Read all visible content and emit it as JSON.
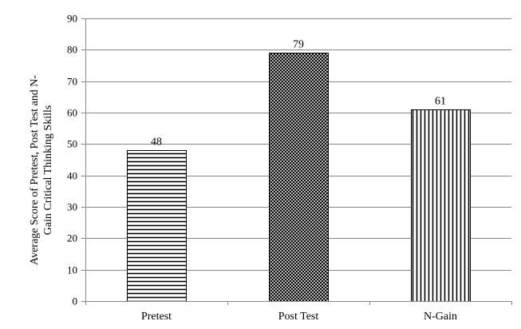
{
  "chart_data": {
    "type": "bar",
    "categories": [
      "Pretest",
      "Post Test",
      "N-Gain"
    ],
    "values": [
      48,
      79,
      61
    ],
    "data_labels": [
      "48",
      "79",
      "61"
    ],
    "bar_patterns": [
      "horizontal-lines",
      "diagonal-crosshatch",
      "vertical-lines"
    ],
    "title": "",
    "xlabel": "",
    "ylabel_lines": [
      "Average Score of Pretest, Post Test and N-",
      "Gain Critical Thinking Skills"
    ],
    "ylim": [
      0,
      90
    ],
    "yticks": [
      "0",
      "10",
      "20",
      "30",
      "40",
      "50",
      "60",
      "70",
      "80",
      "90"
    ],
    "grid": true,
    "legend": "none",
    "colors": {
      "bar_stroke": "#000000",
      "grid": "#868686",
      "axis": "#868686",
      "pattern": "#000000"
    }
  }
}
